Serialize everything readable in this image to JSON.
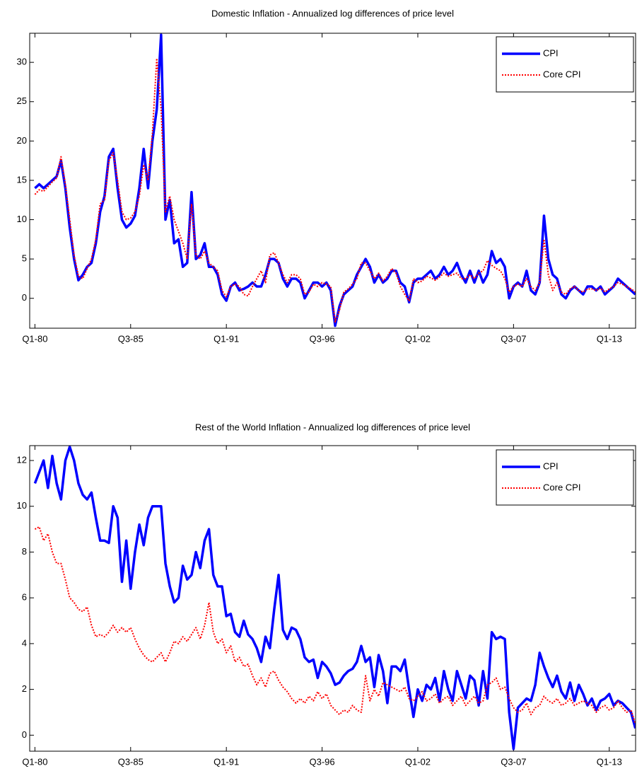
{
  "chart_data": [
    {
      "type": "line",
      "title": "Domestic Inflation - Annualized log differences of price level",
      "categories": [
        "Q1-80",
        null,
        null,
        null,
        null,
        null,
        null,
        null,
        null,
        null,
        null,
        null,
        null,
        null,
        null,
        null,
        null,
        null,
        null,
        null,
        null,
        null,
        "Q3-85",
        null,
        null,
        null,
        null,
        null,
        null,
        null,
        null,
        null,
        null,
        null,
        null,
        null,
        null,
        null,
        null,
        null,
        null,
        null,
        null,
        null,
        "Q1-91",
        null,
        null,
        null,
        null,
        null,
        null,
        null,
        null,
        null,
        null,
        null,
        null,
        null,
        null,
        null,
        null,
        null,
        null,
        null,
        null,
        null,
        "Q3-96",
        null,
        null,
        null,
        null,
        null,
        null,
        null,
        null,
        null,
        null,
        null,
        null,
        null,
        null,
        null,
        null,
        null,
        null,
        null,
        null,
        null,
        "Q1-02",
        null,
        null,
        null,
        null,
        null,
        null,
        null,
        null,
        null,
        null,
        null,
        null,
        null,
        null,
        null,
        null,
        null,
        null,
        null,
        null,
        null,
        "Q3-07",
        null,
        null,
        null,
        null,
        null,
        null,
        null,
        null,
        null,
        null,
        null,
        null,
        null,
        null,
        null,
        null,
        null,
        null,
        null,
        null,
        null,
        "Q1-13",
        null,
        null,
        null,
        null,
        null,
        null
      ],
      "ylim": [
        -3.8,
        33.7
      ],
      "yticks": [
        0,
        5,
        10,
        15,
        20,
        25,
        30
      ],
      "legend": "northeast",
      "series": [
        {
          "name": "CPI",
          "color": "#0000ff",
          "linestyle": "solid",
          "values": [
            14,
            14.5,
            14,
            14.5,
            15,
            15.5,
            17.5,
            14,
            9,
            5,
            2.3,
            3,
            4,
            4.5,
            7,
            11,
            13,
            18,
            19,
            14,
            10,
            9,
            9.5,
            10.5,
            14,
            19,
            14,
            20,
            24,
            33.5,
            10,
            12.5,
            7,
            7.5,
            4,
            4.5,
            13.5,
            5,
            5.5,
            7,
            4,
            4,
            3,
            0.5,
            -0.3,
            1.5,
            2,
            1,
            1.2,
            1.5,
            2,
            1.5,
            1.5,
            3,
            5,
            5,
            4.5,
            2.5,
            1.5,
            2.5,
            2.5,
            2,
            0,
            1,
            2,
            2,
            1.5,
            2,
            1,
            -3.5,
            -1,
            0.5,
            1,
            1.5,
            3,
            4,
            5,
            4,
            2,
            3,
            2,
            2.5,
            3.5,
            3.5,
            2,
            1.5,
            -0.5,
            2,
            2.5,
            2.5,
            3,
            3.5,
            2.5,
            3,
            4,
            3,
            3.5,
            4.5,
            3,
            2,
            3.5,
            2,
            3.5,
            2,
            3,
            6,
            4.5,
            5,
            4,
            0,
            1.5,
            2,
            1.5,
            3.5,
            1,
            0.5,
            2,
            10.5,
            5,
            3,
            2.5,
            0.5,
            0,
            1,
            1.5,
            1,
            0.5,
            1.5,
            1.5,
            1,
            1.5,
            0.5,
            1,
            1.5,
            2.5,
            2,
            1.5,
            1,
            0.5
          ]
        },
        {
          "name": "Core CPI",
          "color": "#ff0000",
          "linestyle": "dotted",
          "values": [
            13.2,
            13.8,
            13.6,
            14.2,
            14.8,
            15.3,
            18,
            14.5,
            10,
            5.5,
            2.8,
            2.5,
            3.8,
            5,
            7.5,
            12,
            12.5,
            17.5,
            18.5,
            15,
            11,
            10,
            10.2,
            11,
            13,
            17,
            15,
            21,
            30.5,
            24,
            11,
            13,
            10,
            8.5,
            7,
            5,
            12,
            5.5,
            5,
            6,
            4.5,
            4,
            3.5,
            1,
            0.2,
            1.5,
            1.8,
            1.5,
            0.5,
            0.3,
            1.5,
            2.5,
            3.5,
            2,
            5.5,
            5.8,
            4.5,
            3,
            2,
            3,
            3,
            2.5,
            0.5,
            0.8,
            1.8,
            1.5,
            2,
            1.8,
            1.5,
            -3,
            -1.5,
            0.8,
            1.2,
            1.8,
            2.5,
            4.5,
            4.5,
            3.5,
            2.5,
            3.2,
            2.2,
            2.8,
            3.8,
            3.2,
            1.5,
            0.5,
            -0.3,
            2.5,
            2,
            2.2,
            2.8,
            2.6,
            2.3,
            2.7,
            3.2,
            2.8,
            3,
            3.2,
            2.5,
            2.5,
            3,
            2.5,
            3.2,
            3.5,
            4.8,
            4.2,
            3.8,
            3.5,
            2.5,
            0.8,
            1.5,
            1.8,
            1.5,
            2.5,
            1.5,
            1,
            2,
            7.5,
            3,
            1,
            2,
            0.8,
            0.5,
            1.2,
            1.5,
            1,
            0.8,
            1.2,
            1.2,
            1,
            1.3,
            0.8,
            1.2,
            1.5,
            2,
            1.8,
            1.5,
            1.2,
            0.8
          ]
        }
      ]
    },
    {
      "type": "line",
      "title": "Rest of the World Inflation - Annualized log differences of price level",
      "categories": [
        "Q1-80",
        null,
        null,
        null,
        null,
        null,
        null,
        null,
        null,
        null,
        null,
        null,
        null,
        null,
        null,
        null,
        null,
        null,
        null,
        null,
        null,
        null,
        "Q3-85",
        null,
        null,
        null,
        null,
        null,
        null,
        null,
        null,
        null,
        null,
        null,
        null,
        null,
        null,
        null,
        null,
        null,
        null,
        null,
        null,
        null,
        "Q1-91",
        null,
        null,
        null,
        null,
        null,
        null,
        null,
        null,
        null,
        null,
        null,
        null,
        null,
        null,
        null,
        null,
        null,
        null,
        null,
        null,
        null,
        "Q3-96",
        null,
        null,
        null,
        null,
        null,
        null,
        null,
        null,
        null,
        null,
        null,
        null,
        null,
        null,
        null,
        null,
        null,
        null,
        null,
        null,
        null,
        "Q1-02",
        null,
        null,
        null,
        null,
        null,
        null,
        null,
        null,
        null,
        null,
        null,
        null,
        null,
        null,
        null,
        null,
        null,
        null,
        null,
        null,
        null,
        "Q3-07",
        null,
        null,
        null,
        null,
        null,
        null,
        null,
        null,
        null,
        null,
        null,
        null,
        null,
        null,
        null,
        null,
        null,
        null,
        null,
        null,
        null,
        "Q1-13",
        null,
        null,
        null,
        null,
        null,
        null
      ],
      "ylim": [
        -0.7,
        12.65
      ],
      "yticks": [
        0,
        2,
        4,
        6,
        8,
        10,
        12
      ],
      "legend": "northeast",
      "series": [
        {
          "name": "CPI",
          "color": "#0000ff",
          "linestyle": "solid",
          "values": [
            11,
            11.5,
            12,
            10.8,
            12.2,
            11,
            10.3,
            12,
            12.6,
            12,
            11,
            10.5,
            10.3,
            10.6,
            9.5,
            8.5,
            8.5,
            8.4,
            10,
            9.5,
            6.7,
            8.5,
            6.4,
            8,
            9.2,
            8.3,
            9.5,
            10,
            10,
            10,
            7.5,
            6.5,
            5.8,
            6,
            7.4,
            6.8,
            7,
            8,
            7.3,
            8.5,
            9,
            7,
            6.5,
            6.5,
            5.2,
            5.3,
            4.5,
            4.3,
            5,
            4.4,
            4.2,
            3.8,
            3.2,
            4.3,
            3.8,
            5.5,
            7,
            4.6,
            4.2,
            4.7,
            4.6,
            4.2,
            3.4,
            3.2,
            3.3,
            2.5,
            3.2,
            3,
            2.7,
            2.2,
            2.3,
            2.6,
            2.8,
            2.9,
            3.2,
            3.9,
            3.2,
            3.4,
            2.1,
            3.5,
            2.8,
            1.4,
            3,
            3,
            2.8,
            3.3,
            2,
            0.8,
            2,
            1.5,
            2.2,
            2,
            2.5,
            1.5,
            2.8,
            2,
            1.5,
            2.8,
            2.2,
            1.6,
            2.6,
            2.4,
            1.3,
            2.8,
            1.6,
            4.5,
            4.2,
            4.3,
            4.2,
            1,
            -0.6,
            1.2,
            1.4,
            1.6,
            1.5,
            2.2,
            3.6,
            3,
            2.5,
            2.1,
            2.6,
            1.9,
            1.6,
            2.3,
            1.5,
            2.2,
            1.8,
            1.3,
            1.6,
            1.1,
            1.5,
            1.6,
            1.8,
            1.3,
            1.5,
            1.4,
            1.2,
            1,
            0.3
          ]
        },
        {
          "name": "Core CPI",
          "color": "#ff0000",
          "linestyle": "dotted",
          "values": [
            9,
            9.1,
            8.5,
            8.8,
            8,
            7.5,
            7.5,
            6.8,
            6,
            5.8,
            5.5,
            5.4,
            5.6,
            4.8,
            4.3,
            4.4,
            4.3,
            4.5,
            4.8,
            4.5,
            4.7,
            4.5,
            4.7,
            4.2,
            3.8,
            3.5,
            3.3,
            3.2,
            3.4,
            3.6,
            3.2,
            3.6,
            4.1,
            4,
            4.3,
            4.1,
            4.4,
            4.7,
            4.2,
            4.8,
            5.8,
            4.5,
            4,
            4.2,
            3.6,
            3.9,
            3.2,
            3.4,
            3,
            3.1,
            2.6,
            2.2,
            2.5,
            2.1,
            2.7,
            2.8,
            2.4,
            2.1,
            1.9,
            1.6,
            1.4,
            1.6,
            1.4,
            1.7,
            1.5,
            1.9,
            1.6,
            1.8,
            1.3,
            1.1,
            0.9,
            1.1,
            1,
            1.3,
            1.1,
            1,
            2.6,
            1.5,
            2,
            1.7,
            2.3,
            2.2,
            2.1,
            2,
            1.9,
            2.1,
            1.6,
            1.5,
            1.7,
            1.9,
            1.5,
            1.6,
            1.8,
            1.4,
            1.6,
            1.7,
            1.3,
            1.5,
            1.7,
            1.3,
            1.5,
            1.7,
            1.4,
            1.5,
            2.2,
            2.3,
            2.5,
            2,
            2.1,
            1.6,
            1.2,
            1,
            1.1,
            1.4,
            0.9,
            1.2,
            1.3,
            1.7,
            1.5,
            1.4,
            1.6,
            1.3,
            1.4,
            1.6,
            1.3,
            1.4,
            1.5,
            1.4,
            1.3,
            1,
            1.2,
            1.3,
            1.1,
            1.2,
            1.5,
            1.2,
            1,
            1.1,
            0.5
          ]
        }
      ]
    }
  ]
}
